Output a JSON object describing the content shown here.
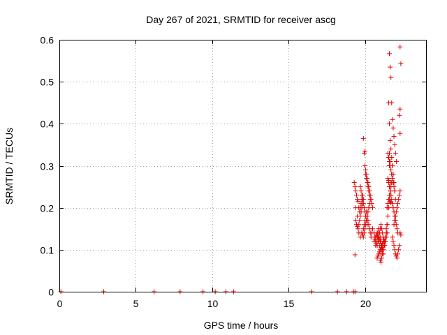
{
  "chart_data": {
    "type": "scatter",
    "title": "Day 267 of 2021, SRMTID for receiver ascg",
    "xlabel": "GPS time / hours",
    "ylabel": "SRMTID / TECUs",
    "xlim": [
      0,
      24
    ],
    "ylim": [
      0,
      0.6
    ],
    "xticks": [
      0,
      5,
      10,
      15,
      20
    ],
    "xtick_labels": [
      "0",
      "5",
      "10",
      "15",
      "20"
    ],
    "yticks": [
      0,
      0.1,
      0.2,
      0.3,
      0.4,
      0.5,
      0.6
    ],
    "ytick_labels": [
      "0",
      "0.1",
      "0.2",
      "0.3",
      "0.4",
      "0.5",
      "0.6"
    ],
    "grid": true,
    "marker": "+",
    "color": "#e00000",
    "series": [
      {
        "name": "SRMTID",
        "x": [
          0.1,
          2.9,
          6.2,
          7.9,
          9.4,
          10.2,
          10.9,
          11.4,
          16.5,
          18.2,
          18.8,
          19.25,
          19.35,
          19.3,
          19.35,
          19.4,
          19.45,
          19.5,
          19.55,
          19.6,
          19.65,
          19.7,
          19.75,
          19.8,
          19.85,
          19.4,
          19.45,
          19.5,
          19.55,
          19.6,
          19.65,
          19.7,
          19.75,
          19.8,
          19.85,
          19.9,
          19.35,
          19.4,
          19.5,
          19.6,
          19.7,
          19.8,
          19.9,
          19.95,
          20.0,
          20.05,
          19.7,
          19.75,
          19.8,
          19.85,
          19.9,
          19.95,
          20.0,
          20.05,
          20.1,
          20.15,
          19.8,
          19.85,
          19.9,
          19.95,
          20.0,
          20.05,
          20.1,
          20.15,
          20.2,
          20.25,
          20.3,
          19.9,
          19.95,
          20.0,
          20.05,
          20.1,
          20.15,
          20.2,
          20.25,
          20.3,
          20.35,
          20.0,
          20.05,
          20.1,
          20.15,
          20.2,
          20.25,
          20.3,
          20.35,
          20.4,
          20.45,
          20.5,
          20.1,
          20.15,
          20.2,
          20.25,
          20.3,
          20.35,
          20.4,
          20.45,
          20.5,
          20.6,
          20.65,
          20.7,
          20.75,
          20.8,
          20.85,
          20.9,
          20.95,
          21.0,
          21.05,
          20.6,
          20.65,
          20.7,
          20.75,
          20.8,
          20.85,
          20.9,
          20.95,
          21.0,
          21.05,
          21.1,
          20.7,
          20.75,
          20.8,
          20.85,
          20.9,
          20.95,
          21.0,
          21.05,
          21.1,
          21.15,
          21.2,
          20.8,
          20.85,
          20.9,
          20.95,
          21.0,
          21.05,
          21.1,
          21.15,
          21.2,
          21.25,
          20.9,
          20.95,
          21.0,
          21.05,
          21.1,
          21.15,
          21.2,
          21.25,
          21.3,
          21.0,
          21.05,
          21.1,
          21.15,
          21.2,
          21.25,
          21.3,
          21.35,
          21.4,
          21.1,
          21.15,
          21.2,
          21.25,
          21.3,
          21.35,
          21.4,
          21.45,
          21.4,
          21.45,
          21.5,
          21.55,
          21.6,
          21.65,
          21.7,
          21.75,
          21.8,
          21.45,
          21.5,
          21.55,
          21.6,
          21.65,
          21.7,
          21.75,
          21.8,
          21.85,
          21.5,
          21.55,
          21.6,
          21.65,
          21.7,
          21.75,
          21.8,
          21.85,
          21.9,
          21.95,
          21.55,
          21.6,
          21.65,
          21.7,
          21.75,
          21.8,
          21.85,
          21.9,
          21.95,
          22.0,
          21.6,
          21.65,
          21.7,
          21.75,
          21.8,
          21.85,
          21.9,
          21.95,
          22.0,
          22.05,
          21.7,
          21.75,
          21.8,
          21.85,
          21.9,
          21.95,
          22.0,
          22.05,
          22.1,
          22.15,
          21.8,
          21.85,
          21.9,
          21.95,
          22.0,
          22.05,
          22.1,
          22.15,
          22.2,
          22.25,
          21.9,
          21.95,
          22.0,
          22.05,
          22.1,
          22.15,
          22.2,
          22.25,
          22.3,
          21.5,
          21.55,
          21.6,
          21.65,
          21.7,
          22.3,
          22.35,
          22.3,
          22.25,
          22.3,
          21.55,
          21.6,
          21.65,
          21.7,
          21.6,
          21.65,
          21.55,
          21.6,
          22.3,
          22.35,
          21.45
        ],
        "y": [
          0,
          0,
          0,
          0,
          0,
          0,
          0,
          0,
          0,
          0,
          0,
          0,
          0,
          0.26,
          0.25,
          0.24,
          0.23,
          0.22,
          0.215,
          0.2,
          0.19,
          0.2,
          0.21,
          0.22,
          0.23,
          0.17,
          0.16,
          0.155,
          0.15,
          0.16,
          0.17,
          0.18,
          0.19,
          0.2,
          0.21,
          0.22,
          0.088,
          0.2,
          0.18,
          0.14,
          0.13,
          0.14,
          0.15,
          0.16,
          0.17,
          0.18,
          0.25,
          0.24,
          0.23,
          0.22,
          0.21,
          0.2,
          0.19,
          0.18,
          0.17,
          0.16,
          0.14,
          0.135,
          0.13,
          0.14,
          0.15,
          0.16,
          0.17,
          0.18,
          0.19,
          0.2,
          0.21,
          0.365,
          0.33,
          0.335,
          0.28,
          0.27,
          0.26,
          0.25,
          0.24,
          0.23,
          0.22,
          0.3,
          0.29,
          0.28,
          0.27,
          0.26,
          0.25,
          0.24,
          0.23,
          0.22,
          0.21,
          0.2,
          0.19,
          0.18,
          0.17,
          0.16,
          0.15,
          0.14,
          0.13,
          0.14,
          0.15,
          0.14,
          0.13,
          0.12,
          0.115,
          0.11,
          0.12,
          0.13,
          0.14,
          0.15,
          0.16,
          0.12,
          0.125,
          0.13,
          0.135,
          0.14,
          0.13,
          0.12,
          0.11,
          0.1,
          0.09,
          0.1,
          0.11,
          0.12,
          0.13,
          0.14,
          0.15,
          0.14,
          0.13,
          0.12,
          0.11,
          0.1,
          0.09,
          0.08,
          0.085,
          0.09,
          0.095,
          0.1,
          0.105,
          0.11,
          0.115,
          0.12,
          0.125,
          0.13,
          0.125,
          0.12,
          0.115,
          0.11,
          0.105,
          0.1,
          0.11,
          0.12,
          0.075,
          0.07,
          0.08,
          0.09,
          0.1,
          0.11,
          0.12,
          0.13,
          0.14,
          0.15,
          0.14,
          0.13,
          0.12,
          0.11,
          0.12,
          0.13,
          0.14,
          0.15,
          0.16,
          0.18,
          0.2,
          0.22,
          0.24,
          0.26,
          0.28,
          0.3,
          0.2,
          0.21,
          0.22,
          0.23,
          0.24,
          0.25,
          0.26,
          0.27,
          0.28,
          0.33,
          0.32,
          0.31,
          0.3,
          0.29,
          0.28,
          0.27,
          0.26,
          0.25,
          0.24,
          0.45,
          0.4,
          0.36,
          0.34,
          0.32,
          0.3,
          0.28,
          0.26,
          0.24,
          0.22,
          0.567,
          0.535,
          0.51,
          0.45,
          0.41,
          0.39,
          0.37,
          0.35,
          0.33,
          0.31,
          0.23,
          0.22,
          0.21,
          0.2,
          0.19,
          0.18,
          0.17,
          0.16,
          0.15,
          0.14,
          0.13,
          0.12,
          0.11,
          0.1,
          0.09,
          0.085,
          0.08,
          0.09,
          0.1,
          0.11,
          0.16,
          0.17,
          0.18,
          0.19,
          0.2,
          0.21,
          0.22,
          0.23,
          0.24,
          0.27,
          0.26,
          0.25,
          0.24,
          0.23,
          0.583,
          0.543,
          0.435,
          0.42,
          0.377,
          0.265,
          0.25,
          0.215,
          0.212,
          0.3,
          0.31,
          0.32,
          0.33,
          0.14,
          0.135,
          0.16
        ]
      }
    ]
  }
}
